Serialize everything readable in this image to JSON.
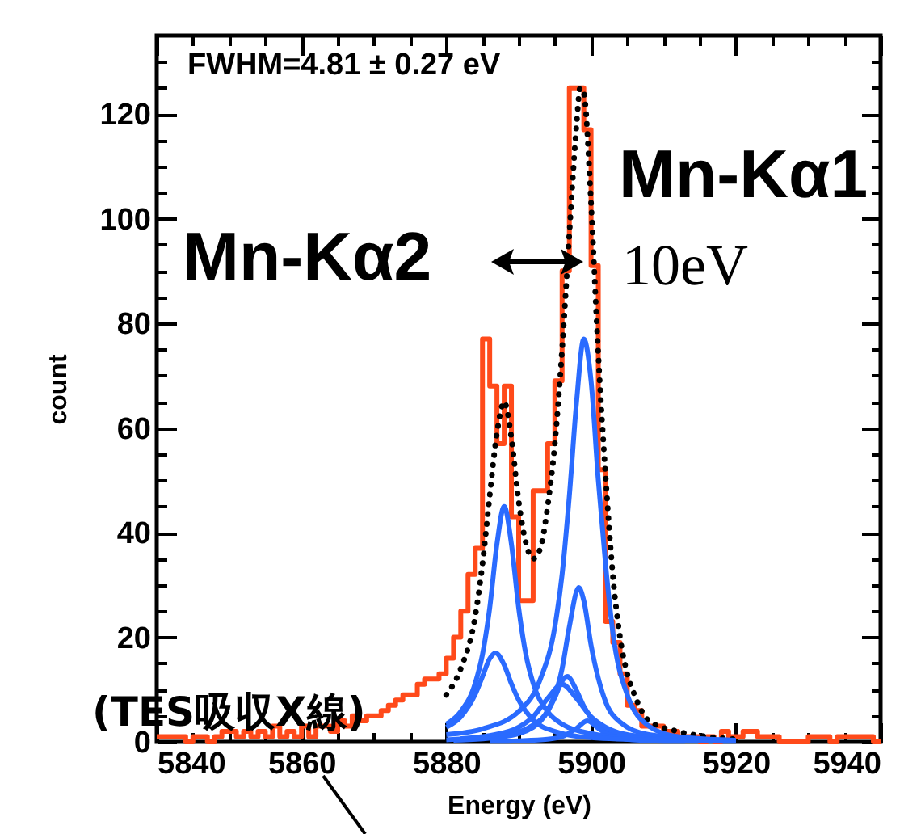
{
  "chart_data": {
    "type": "histogram",
    "annotations": [
      "FWHM=4.81 ± 0.27 eV",
      "Mn-Kα2",
      "Mn-Kα1",
      "10eV",
      "(TES吸収X線)"
    ],
    "xlabel": "Energy (eV)",
    "ylabel": "count",
    "xlim": [
      5840,
      5940
    ],
    "ylim": [
      0,
      135
    ],
    "xticks": [
      5840,
      {
        "value": 5845,
        "label": null
      },
      {
        "value": 5850,
        "label": null
      },
      {
        "value": 5855,
        "label": null
      },
      5860,
      {
        "value": 5865,
        "label": null
      },
      {
        "value": 5870,
        "label": null
      },
      {
        "value": 5875,
        "label": null
      },
      5880,
      {
        "value": 5885,
        "label": null
      },
      {
        "value": 5890,
        "label": null
      },
      {
        "value": 5895,
        "label": null
      },
      5900,
      {
        "value": 5905,
        "label": null
      },
      {
        "value": 5910,
        "label": null
      },
      {
        "value": 5915,
        "label": null
      },
      5920,
      {
        "value": 5925,
        "label": null
      },
      {
        "value": 5930,
        "label": null
      },
      {
        "value": 5935,
        "label": null
      },
      5940
    ],
    "yticks": [
      0,
      {
        "value": 5,
        "label": null
      },
      {
        "value": 10,
        "label": null
      },
      {
        "value": 15,
        "label": null
      },
      20,
      {
        "value": 25,
        "label": null
      },
      {
        "value": 30,
        "label": null
      },
      {
        "value": 35,
        "label": null
      },
      40,
      {
        "value": 45,
        "label": null
      },
      {
        "value": 50,
        "label": null
      },
      {
        "value": 55,
        "label": null
      },
      60,
      {
        "value": 65,
        "label": null
      },
      {
        "value": 70,
        "label": null
      },
      {
        "value": 75,
        "label": null
      },
      80,
      {
        "value": 85,
        "label": null
      },
      {
        "value": 90,
        "label": null
      },
      {
        "value": 95,
        "label": null
      },
      100,
      {
        "value": 105,
        "label": null
      },
      {
        "value": 110,
        "label": null
      },
      {
        "value": 115,
        "label": null
      },
      120,
      {
        "value": 125,
        "label": null
      },
      {
        "value": 130,
        "label": null
      }
    ],
    "series": [
      {
        "type": "histogram",
        "color": "#ff4a1a",
        "bins": [
          5840,
          5841,
          5842,
          5843,
          5844,
          5845,
          5846,
          5847,
          5848,
          5849,
          5850,
          5851,
          5852,
          5853,
          5854,
          5855,
          5856,
          5857,
          5858,
          5859,
          5860,
          5861,
          5862,
          5863,
          5864,
          5865,
          5866,
          5867,
          5868,
          5869,
          5870,
          5871,
          5872,
          5873,
          5874,
          5875,
          5876,
          5877,
          5878,
          5879,
          5880,
          5881,
          5882,
          5883,
          5884,
          5885,
          5886,
          5887,
          5888,
          5889,
          5890,
          5891,
          5892,
          5893,
          5894,
          5895,
          5896,
          5897,
          5898,
          5899,
          5900,
          5901,
          5902,
          5903,
          5904,
          5905,
          5906,
          5907,
          5908,
          5909,
          5910,
          5911,
          5912,
          5913,
          5914,
          5915,
          5916,
          5917,
          5918,
          5919,
          5920,
          5921,
          5922,
          5923,
          5924,
          5925,
          5926,
          5927,
          5928,
          5929,
          5930,
          5931,
          5932,
          5933,
          5934,
          5935,
          5936,
          5937,
          5938,
          5939,
          5940
        ],
        "values": [
          1,
          1,
          1,
          1,
          0,
          1,
          1,
          0,
          1,
          2,
          2,
          1,
          2,
          1,
          2,
          1,
          3,
          1,
          2,
          1,
          3,
          1,
          3,
          3,
          2,
          4,
          3,
          5,
          4,
          5,
          5,
          6,
          7,
          8,
          9,
          9,
          11,
          12,
          12,
          13,
          16,
          20,
          25,
          32,
          37,
          77,
          68,
          57,
          68,
          43,
          27,
          27,
          48,
          48,
          57,
          69,
          90,
          125,
          125,
          117,
          91,
          52,
          23,
          19,
          13,
          7,
          6,
          3,
          3,
          3,
          2,
          2,
          1,
          1,
          1,
          0,
          1,
          0,
          2,
          1,
          1,
          2,
          2,
          1,
          1,
          1,
          0,
          0,
          0,
          0,
          1,
          1,
          1,
          0,
          1,
          1,
          1,
          1,
          1,
          0
        ]
      },
      {
        "type": "line",
        "color": "#000000",
        "line_style": "dotted",
        "x": [
          5880,
          5882,
          5884,
          5885,
          5886,
          5887,
          5888,
          5889,
          5890,
          5891,
          5892,
          5893,
          5894,
          5895,
          5896,
          5897,
          5898,
          5898.5,
          5899,
          5900,
          5901,
          5902,
          5903,
          5904,
          5905,
          5906,
          5908,
          5912,
          5916,
          5920
        ],
        "values": [
          9,
          14,
          24,
          34,
          47,
          59,
          65,
          58,
          46,
          38,
          35,
          37,
          45,
          57,
          75,
          97,
          118,
          125,
          124,
          103,
          74,
          51,
          32,
          20,
          13,
          9,
          4,
          2,
          1,
          0.5
        ]
      },
      {
        "type": "line",
        "color": "#2a6bff",
        "x": [
          5880,
          5885,
          5890,
          5893,
          5895,
          5896,
          5897,
          5898,
          5899,
          5900,
          5901,
          5902,
          5903,
          5905,
          5908,
          5912,
          5920
        ],
        "values": [
          1.4,
          2.5,
          5.8,
          12,
          22,
          32,
          47,
          65,
          77,
          69,
          50,
          34,
          21,
          9,
          3,
          1,
          0.3
        ]
      },
      {
        "type": "line",
        "color": "#2a6bff",
        "x": [
          5880,
          5888,
          5892,
          5894,
          5896,
          5897,
          5898.3,
          5899,
          5900,
          5902,
          5904,
          5908,
          5919
        ],
        "values": [
          0.4,
          1.3,
          3.2,
          6,
          14,
          22,
          29.5,
          27,
          18.5,
          7.7,
          3.8,
          1.4,
          0.3
        ]
      },
      {
        "type": "line",
        "color": "#2a6bff",
        "x": [
          5881,
          5888,
          5892,
          5894,
          5895,
          5896,
          5896.7,
          5898,
          5899,
          5900,
          5902,
          5906,
          5916
        ],
        "values": [
          0.3,
          1,
          2.8,
          5.8,
          8.5,
          11.6,
          12.5,
          9.8,
          6.8,
          4.6,
          2.3,
          0.8,
          0.2
        ]
      },
      {
        "type": "line",
        "color": "#2a6bff",
        "x": [
          5882,
          5886,
          5890,
          5892,
          5894,
          5896,
          5898,
          5900,
          5902,
          5906,
          5918
        ],
        "values": [
          0.6,
          1.2,
          2.8,
          4.8,
          8.3,
          11,
          8.3,
          4.8,
          2.8,
          1.2,
          0.3
        ]
      },
      {
        "type": "line",
        "color": "#2a6bff",
        "x": [
          5886,
          5890,
          5894,
          5896,
          5898,
          5899.5,
          5901,
          5903,
          5908,
          5913
        ],
        "values": [
          0.1,
          0.2,
          0.5,
          1,
          2.6,
          4,
          2.6,
          1,
          0.2,
          0.1
        ]
      },
      {
        "type": "line",
        "color": "#2a6bff",
        "x": [
          5880,
          5882,
          5884,
          5885,
          5886,
          5887,
          5888,
          5889,
          5890,
          5891,
          5892,
          5894,
          5896,
          5900,
          5906,
          5920
        ],
        "values": [
          3.4,
          5.8,
          11.2,
          16.7,
          25.6,
          37.8,
          45,
          37.8,
          25.6,
          16.7,
          11.2,
          5.8,
          3.4,
          1.6,
          0.7,
          0.2
        ]
      },
      {
        "type": "line",
        "color": "#2a6bff",
        "x": [
          5880,
          5882,
          5884,
          5885,
          5886,
          5886.8,
          5888,
          5889,
          5890,
          5892,
          5895,
          5900,
          5910,
          5920
        ],
        "values": [
          2.8,
          4.8,
          9.1,
          12.5,
          15.9,
          17,
          14.7,
          11.1,
          8,
          4.2,
          2,
          0.8,
          0.3,
          0.1
        ]
      }
    ]
  }
}
